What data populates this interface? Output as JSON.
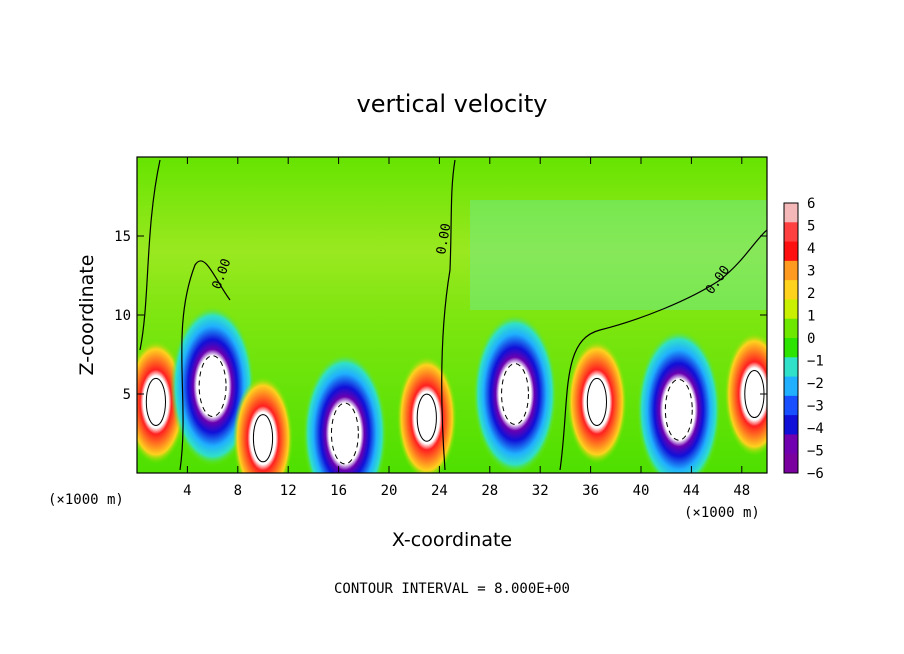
{
  "chart_data": {
    "type": "heatmap",
    "title": "vertical velocity",
    "xlabel": "X-coordinate",
    "ylabel": "Z-coordinate",
    "x_unit_label": "(×1000 m)",
    "y_unit_label": "",
    "xlim": [
      0,
      50
    ],
    "ylim": [
      0,
      20
    ],
    "x_ticks": [
      4,
      8,
      12,
      16,
      20,
      24,
      28,
      32,
      36,
      40,
      44,
      48
    ],
    "y_ticks": [
      5,
      10,
      15
    ],
    "colorbar": {
      "levels": [
        6,
        5,
        4,
        3,
        2,
        1,
        0,
        -1,
        -2,
        -3,
        -4,
        -5,
        -6
      ],
      "labels": [
        "6",
        "5",
        "4",
        "3",
        "2",
        "1",
        "0",
        "−1",
        "−2",
        "−3",
        "−4",
        "−5",
        "−6"
      ],
      "colors": [
        "#f4b8b8",
        "#ff4040",
        "#ff1010",
        "#ff9a20",
        "#ffd21e",
        "#c8f000",
        "#6ee800",
        "#2ce400",
        "#30e0c8",
        "#20b0ff",
        "#1850ff",
        "#1010d8",
        "#7000b0",
        "#7a00a0"
      ]
    },
    "contour_labels": [
      "0.00",
      "0.00",
      "0.00"
    ],
    "cells": [
      {
        "x": 1.5,
        "z": 4.5,
        "w": 5,
        "kind": "updraft"
      },
      {
        "x": 6,
        "z": 5.5,
        "w": -5,
        "kind": "downdraft"
      },
      {
        "x": 10,
        "z": 2.2,
        "w": 5,
        "kind": "updraft"
      },
      {
        "x": 16.5,
        "z": 2.5,
        "w": -5,
        "kind": "downdraft"
      },
      {
        "x": 23,
        "z": 3.5,
        "w": 5,
        "kind": "updraft"
      },
      {
        "x": 30,
        "z": 5.0,
        "w": -6,
        "kind": "downdraft"
      },
      {
        "x": 36.5,
        "z": 4.5,
        "w": 4,
        "kind": "updraft"
      },
      {
        "x": 43,
        "z": 4.0,
        "w": -5,
        "kind": "downdraft"
      },
      {
        "x": 49,
        "z": 5.0,
        "w": 5,
        "kind": "updraft"
      }
    ]
  },
  "footer": {
    "contour_interval": "CONTOUR INTERVAL = 8.000E+00"
  },
  "colors": {
    "background_field": "#4ee000",
    "upper_field": "#a8e830"
  }
}
